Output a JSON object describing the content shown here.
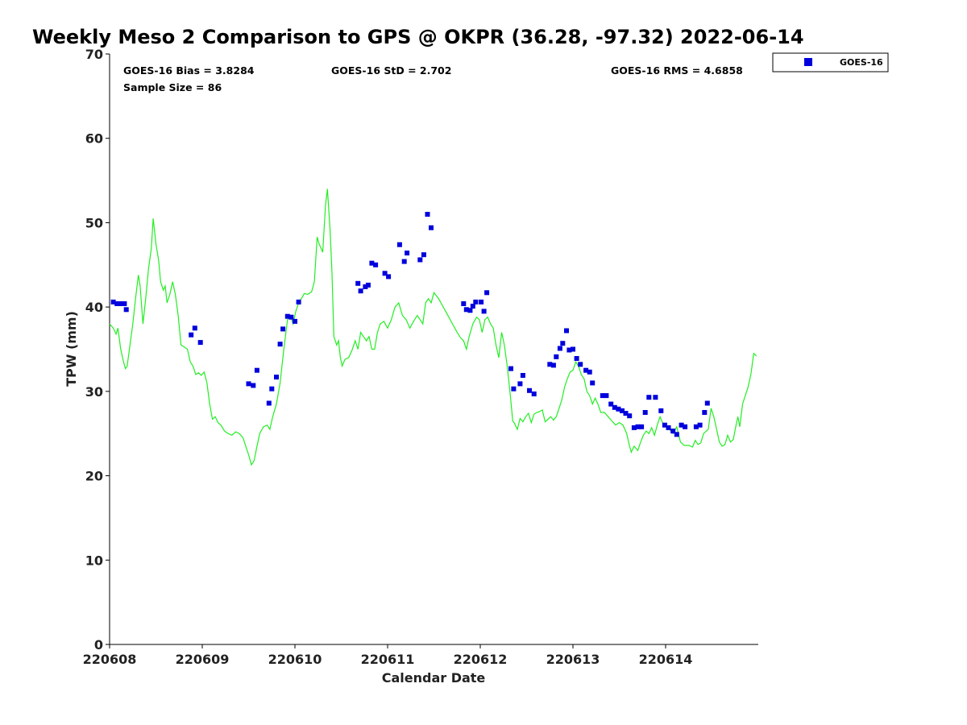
{
  "chart_data": {
    "type": "scatter",
    "title": "Weekly Meso 2 Comparison to GPS @ OKPR (36.28, -97.32) 2022-06-14",
    "xlabel": "Calendar Date",
    "ylabel": "TPW (mm)",
    "xlim": [
      0,
      7.0
    ],
    "ylim": [
      0,
      70
    ],
    "yticks": [
      0,
      10,
      20,
      30,
      40,
      50,
      60,
      70
    ],
    "xticks": [
      {
        "v": 0,
        "label": "220608"
      },
      {
        "v": 1,
        "label": "220609"
      },
      {
        "v": 2,
        "label": "220610"
      },
      {
        "v": 3,
        "label": "220611"
      },
      {
        "v": 4,
        "label": "220612"
      },
      {
        "v": 5,
        "label": "220613"
      },
      {
        "v": 6,
        "label": "220614"
      }
    ],
    "stats": {
      "bias": "GOES-16 Bias = 3.8284",
      "std": "GOES-16 StD = 2.702",
      "rms": "GOES-16 RMS = 4.6858",
      "sample": "Sample Size = 86"
    },
    "legend": {
      "position": "top-right",
      "entries": [
        {
          "label": "GOES-16",
          "color": "#0000dd"
        }
      ]
    },
    "colors": {
      "goes": "#0000dd",
      "gps": "#22ee22"
    },
    "series": [
      {
        "name": "GOES-16",
        "points": [
          [
            0.04,
            40.6
          ],
          [
            0.08,
            40.4
          ],
          [
            0.12,
            40.4
          ],
          [
            0.16,
            40.4
          ],
          [
            0.18,
            39.7
          ],
          [
            0.88,
            36.7
          ],
          [
            0.92,
            37.5
          ],
          [
            0.98,
            35.8
          ],
          [
            1.5,
            30.9
          ],
          [
            1.55,
            30.7
          ],
          [
            1.59,
            32.5
          ],
          [
            1.72,
            28.6
          ],
          [
            1.75,
            30.3
          ],
          [
            1.8,
            31.7
          ],
          [
            1.84,
            35.6
          ],
          [
            1.87,
            37.4
          ],
          [
            1.92,
            38.9
          ],
          [
            1.96,
            38.8
          ],
          [
            2.0,
            38.3
          ],
          [
            2.04,
            40.6
          ],
          [
            2.68,
            42.8
          ],
          [
            2.71,
            41.9
          ],
          [
            2.76,
            42.4
          ],
          [
            2.79,
            42.6
          ],
          [
            2.83,
            45.2
          ],
          [
            2.87,
            45.0
          ],
          [
            2.97,
            44.0
          ],
          [
            3.01,
            43.6
          ],
          [
            3.13,
            47.4
          ],
          [
            3.18,
            45.4
          ],
          [
            3.21,
            46.4
          ],
          [
            3.35,
            45.6
          ],
          [
            3.39,
            46.2
          ],
          [
            3.43,
            51.0
          ],
          [
            3.47,
            49.4
          ],
          [
            3.82,
            40.4
          ],
          [
            3.85,
            39.7
          ],
          [
            3.89,
            39.6
          ],
          [
            3.92,
            40.1
          ],
          [
            3.95,
            40.6
          ],
          [
            4.01,
            40.6
          ],
          [
            4.04,
            39.5
          ],
          [
            4.07,
            41.7
          ],
          [
            4.33,
            32.7
          ],
          [
            4.36,
            30.3
          ],
          [
            4.43,
            30.9
          ],
          [
            4.46,
            31.9
          ],
          [
            4.53,
            30.1
          ],
          [
            4.58,
            29.7
          ],
          [
            4.75,
            33.2
          ],
          [
            4.79,
            33.1
          ],
          [
            4.82,
            34.1
          ],
          [
            4.86,
            35.1
          ],
          [
            4.89,
            35.7
          ],
          [
            4.93,
            37.2
          ],
          [
            4.96,
            34.9
          ],
          [
            5.0,
            35.0
          ],
          [
            5.04,
            33.9
          ],
          [
            5.08,
            33.2
          ],
          [
            5.14,
            32.5
          ],
          [
            5.18,
            32.3
          ],
          [
            5.21,
            31.0
          ],
          [
            5.32,
            29.5
          ],
          [
            5.36,
            29.5
          ],
          [
            5.41,
            28.5
          ],
          [
            5.45,
            28.1
          ],
          [
            5.49,
            27.9
          ],
          [
            5.53,
            27.7
          ],
          [
            5.57,
            27.4
          ],
          [
            5.61,
            27.1
          ],
          [
            5.66,
            25.7
          ],
          [
            5.7,
            25.8
          ],
          [
            5.74,
            25.8
          ],
          [
            5.78,
            27.5
          ],
          [
            5.82,
            29.3
          ],
          [
            5.89,
            29.3
          ],
          [
            5.95,
            27.7
          ],
          [
            5.99,
            26.0
          ],
          [
            6.03,
            25.7
          ],
          [
            6.08,
            25.3
          ],
          [
            6.12,
            24.9
          ],
          [
            6.17,
            26.0
          ],
          [
            6.21,
            25.8
          ],
          [
            6.33,
            25.8
          ],
          [
            6.37,
            26.0
          ],
          [
            6.42,
            27.5
          ],
          [
            6.45,
            28.6
          ]
        ]
      },
      {
        "name": "GPS",
        "points": [
          [
            0.0,
            38.0
          ],
          [
            0.04,
            37.5
          ],
          [
            0.07,
            36.8
          ],
          [
            0.09,
            37.5
          ],
          [
            0.12,
            35.0
          ],
          [
            0.15,
            33.5
          ],
          [
            0.17,
            32.7
          ],
          [
            0.19,
            33.0
          ],
          [
            0.22,
            35.5
          ],
          [
            0.25,
            38.0
          ],
          [
            0.28,
            41.0
          ],
          [
            0.31,
            43.8
          ],
          [
            0.33,
            42.5
          ],
          [
            0.36,
            38.0
          ],
          [
            0.39,
            41.0
          ],
          [
            0.42,
            44.5
          ],
          [
            0.45,
            47.0
          ],
          [
            0.47,
            50.5
          ],
          [
            0.5,
            47.5
          ],
          [
            0.53,
            45.5
          ],
          [
            0.55,
            43.0
          ],
          [
            0.58,
            42.0
          ],
          [
            0.6,
            42.5
          ],
          [
            0.62,
            40.5
          ],
          [
            0.65,
            41.5
          ],
          [
            0.68,
            43.0
          ],
          [
            0.71,
            41.5
          ],
          [
            0.74,
            39.0
          ],
          [
            0.77,
            35.5
          ],
          [
            0.8,
            35.3
          ],
          [
            0.84,
            35.0
          ],
          [
            0.87,
            33.5
          ],
          [
            0.9,
            33.0
          ],
          [
            0.93,
            32.0
          ],
          [
            0.96,
            32.2
          ],
          [
            0.99,
            31.9
          ],
          [
            1.02,
            32.3
          ],
          [
            1.05,
            31.0
          ],
          [
            1.08,
            28.5
          ],
          [
            1.11,
            26.7
          ],
          [
            1.14,
            27.0
          ],
          [
            1.17,
            26.3
          ],
          [
            1.2,
            26.0
          ],
          [
            1.24,
            25.3
          ],
          [
            1.28,
            25.0
          ],
          [
            1.32,
            24.8
          ],
          [
            1.36,
            25.2
          ],
          [
            1.4,
            25.0
          ],
          [
            1.44,
            24.5
          ],
          [
            1.47,
            23.5
          ],
          [
            1.5,
            22.5
          ],
          [
            1.53,
            21.3
          ],
          [
            1.56,
            21.8
          ],
          [
            1.59,
            23.5
          ],
          [
            1.62,
            25.0
          ],
          [
            1.66,
            25.8
          ],
          [
            1.7,
            26.0
          ],
          [
            1.73,
            25.5
          ],
          [
            1.76,
            27.0
          ],
          [
            1.8,
            28.5
          ],
          [
            1.84,
            31.0
          ],
          [
            1.88,
            35.0
          ],
          [
            1.92,
            38.5
          ],
          [
            1.95,
            39.0
          ],
          [
            1.98,
            38.0
          ],
          [
            2.01,
            39.5
          ],
          [
            2.04,
            40.5
          ],
          [
            2.07,
            41.0
          ],
          [
            2.1,
            41.6
          ],
          [
            2.14,
            41.5
          ],
          [
            2.18,
            41.8
          ],
          [
            2.21,
            43.0
          ],
          [
            2.24,
            48.3
          ],
          [
            2.26,
            47.5
          ],
          [
            2.28,
            47.0
          ],
          [
            2.3,
            46.5
          ],
          [
            2.33,
            52.0
          ],
          [
            2.35,
            54.0
          ],
          [
            2.38,
            49.0
          ],
          [
            2.4,
            44.0
          ],
          [
            2.42,
            36.5
          ],
          [
            2.45,
            35.5
          ],
          [
            2.47,
            36.0
          ],
          [
            2.49,
            34.0
          ],
          [
            2.51,
            33.0
          ],
          [
            2.54,
            33.8
          ],
          [
            2.58,
            34.0
          ],
          [
            2.62,
            35.0
          ],
          [
            2.65,
            36.0
          ],
          [
            2.68,
            35.0
          ],
          [
            2.71,
            37.0
          ],
          [
            2.74,
            36.5
          ],
          [
            2.77,
            36.0
          ],
          [
            2.8,
            36.5
          ],
          [
            2.83,
            35.0
          ],
          [
            2.86,
            35.0
          ],
          [
            2.89,
            37.0
          ],
          [
            2.92,
            38.0
          ],
          [
            2.96,
            38.3
          ],
          [
            3.0,
            37.5
          ],
          [
            3.04,
            38.5
          ],
          [
            3.08,
            40.0
          ],
          [
            3.12,
            40.5
          ],
          [
            3.16,
            39.0
          ],
          [
            3.2,
            38.5
          ],
          [
            3.24,
            37.5
          ],
          [
            3.28,
            38.3
          ],
          [
            3.32,
            39.0
          ],
          [
            3.35,
            38.5
          ],
          [
            3.38,
            38.0
          ],
          [
            3.41,
            40.5
          ],
          [
            3.44,
            41.0
          ],
          [
            3.47,
            40.5
          ],
          [
            3.5,
            41.7
          ],
          [
            3.55,
            41.0
          ],
          [
            3.6,
            40.0
          ],
          [
            3.65,
            39.0
          ],
          [
            3.7,
            38.0
          ],
          [
            3.75,
            37.0
          ],
          [
            3.79,
            36.3
          ],
          [
            3.82,
            36.0
          ],
          [
            3.85,
            35.0
          ],
          [
            3.88,
            36.5
          ],
          [
            3.92,
            38.0
          ],
          [
            3.96,
            38.8
          ],
          [
            3.99,
            38.5
          ],
          [
            4.02,
            37.0
          ],
          [
            4.05,
            38.5
          ],
          [
            4.08,
            38.8
          ],
          [
            4.11,
            38.0
          ],
          [
            4.14,
            37.5
          ],
          [
            4.17,
            35.5
          ],
          [
            4.2,
            34.0
          ],
          [
            4.23,
            37.0
          ],
          [
            4.26,
            35.5
          ],
          [
            4.29,
            33.0
          ],
          [
            4.32,
            30.0
          ],
          [
            4.35,
            26.5
          ],
          [
            4.37,
            26.2
          ],
          [
            4.4,
            25.5
          ],
          [
            4.43,
            26.8
          ],
          [
            4.46,
            26.4
          ],
          [
            4.49,
            27.0
          ],
          [
            4.52,
            27.4
          ],
          [
            4.55,
            26.3
          ],
          [
            4.58,
            27.3
          ],
          [
            4.61,
            27.5
          ],
          [
            4.64,
            27.6
          ],
          [
            4.67,
            27.8
          ],
          [
            4.7,
            26.4
          ],
          [
            4.73,
            26.7
          ],
          [
            4.76,
            27.0
          ],
          [
            4.79,
            26.6
          ],
          [
            4.82,
            27.0
          ],
          [
            4.85,
            28.0
          ],
          [
            4.88,
            29.0
          ],
          [
            4.91,
            30.5
          ],
          [
            4.94,
            31.5
          ],
          [
            4.97,
            32.3
          ],
          [
            5.0,
            32.5
          ],
          [
            5.03,
            33.5
          ],
          [
            5.06,
            33.0
          ],
          [
            5.09,
            32.0
          ],
          [
            5.12,
            31.5
          ],
          [
            5.15,
            30.0
          ],
          [
            5.18,
            29.5
          ],
          [
            5.21,
            28.5
          ],
          [
            5.24,
            29.2
          ],
          [
            5.27,
            28.5
          ],
          [
            5.3,
            27.5
          ],
          [
            5.34,
            27.5
          ],
          [
            5.38,
            27.0
          ],
          [
            5.42,
            26.5
          ],
          [
            5.46,
            26.0
          ],
          [
            5.5,
            26.3
          ],
          [
            5.54,
            26.0
          ],
          [
            5.58,
            25.0
          ],
          [
            5.61,
            23.5
          ],
          [
            5.63,
            22.8
          ],
          [
            5.66,
            23.5
          ],
          [
            5.7,
            23.0
          ],
          [
            5.73,
            24.0
          ],
          [
            5.76,
            24.8
          ],
          [
            5.79,
            25.3
          ],
          [
            5.82,
            25.0
          ],
          [
            5.85,
            25.7
          ],
          [
            5.88,
            24.8
          ],
          [
            5.91,
            26.0
          ],
          [
            5.94,
            27.0
          ],
          [
            5.97,
            26.2
          ],
          [
            6.0,
            25.8
          ],
          [
            6.04,
            25.5
          ],
          [
            6.08,
            25.0
          ],
          [
            6.12,
            25.8
          ],
          [
            6.16,
            24.0
          ],
          [
            6.2,
            23.6
          ],
          [
            6.25,
            23.6
          ],
          [
            6.29,
            23.4
          ],
          [
            6.32,
            24.2
          ],
          [
            6.35,
            23.7
          ],
          [
            6.38,
            23.9
          ],
          [
            6.41,
            25.0
          ],
          [
            6.44,
            25.3
          ],
          [
            6.46,
            25.5
          ],
          [
            6.49,
            28.0
          ],
          [
            6.52,
            27.0
          ],
          [
            6.55,
            25.5
          ],
          [
            6.58,
            24.0
          ],
          [
            6.61,
            23.5
          ],
          [
            6.64,
            23.7
          ],
          [
            6.67,
            24.8
          ],
          [
            6.7,
            24.0
          ],
          [
            6.73,
            24.3
          ],
          [
            6.76,
            26.0
          ],
          [
            6.78,
            27.0
          ],
          [
            6.8,
            25.8
          ],
          [
            6.83,
            28.5
          ],
          [
            6.86,
            29.5
          ],
          [
            6.89,
            30.5
          ],
          [
            6.92,
            32.0
          ],
          [
            6.95,
            34.5
          ],
          [
            6.98,
            34.2
          ]
        ]
      }
    ]
  }
}
